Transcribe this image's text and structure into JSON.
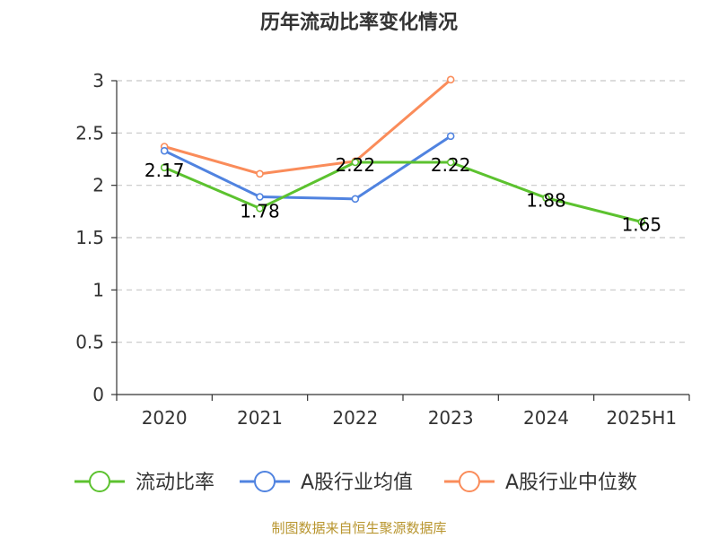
{
  "chart_data": {
    "type": "line",
    "title": "历年流动比率变化情况",
    "categories": [
      "2020",
      "2021",
      "2022",
      "2023",
      "2024",
      "2025H1"
    ],
    "ylim": [
      0,
      3
    ],
    "yticks": [
      "0",
      "0.5",
      "1",
      "1.5",
      "2",
      "2.5",
      "3"
    ],
    "ytick_values": [
      0,
      0.5,
      1,
      1.5,
      2,
      2.5,
      3
    ],
    "grid": true,
    "legend_position": "bottom",
    "series": [
      {
        "name": "流动比率",
        "color": "#5cc22f",
        "values": [
          2.17,
          1.78,
          2.22,
          2.22,
          1.88,
          1.65
        ],
        "labels": [
          "2.17",
          "1.78",
          "2.22",
          "2.22",
          "1.88",
          "1.65"
        ]
      },
      {
        "name": "A股行业均值",
        "color": "#5083e0",
        "values": [
          2.33,
          1.89,
          1.87,
          2.47,
          null,
          null
        ]
      },
      {
        "name": "A股行业中位数",
        "color": "#fa8c5a",
        "values": [
          2.37,
          2.11,
          2.23,
          3.01,
          null,
          null
        ]
      }
    ]
  },
  "source": "制图数据来自恒生聚源数据库"
}
